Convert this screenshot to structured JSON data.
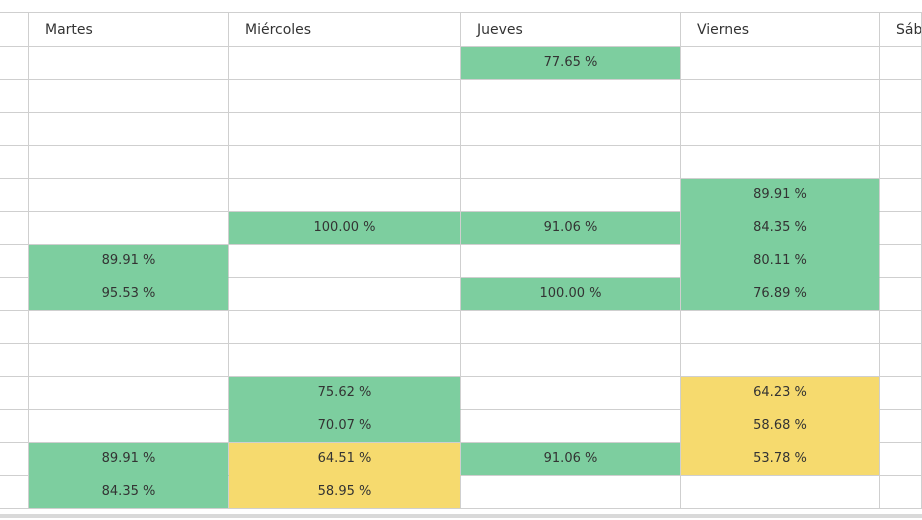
{
  "colors": {
    "green": "#7dce9f",
    "yellow": "#f6da6e",
    "grid": "#cfcfcf"
  },
  "headers": [
    "",
    "Martes",
    "Miércoles",
    "Jueves",
    "Viernes",
    "Sába"
  ],
  "rows": [
    [
      "",
      "",
      "",
      "77.65 %",
      "",
      ""
    ],
    [
      "",
      "",
      "",
      "",
      "",
      ""
    ],
    [
      "",
      "",
      "",
      "",
      "",
      ""
    ],
    [
      "",
      "",
      "",
      "",
      "",
      ""
    ],
    [
      "",
      "",
      "",
      "",
      "89.91 %",
      ""
    ],
    [
      "",
      "",
      "100.00 %",
      "91.06 %",
      "84.35 %",
      ""
    ],
    [
      "",
      "89.91 %",
      "",
      "",
      "80.11 %",
      ""
    ],
    [
      "",
      "95.53 %",
      "",
      "100.00 %",
      "76.89 %",
      ""
    ],
    [
      "",
      "",
      "",
      "",
      "",
      ""
    ],
    [
      "",
      "",
      "",
      "",
      "",
      ""
    ],
    [
      "",
      "",
      "75.62 %",
      "",
      "64.23 %",
      ""
    ],
    [
      "",
      "",
      "70.07 %",
      "",
      "58.68 %",
      ""
    ],
    [
      "",
      "89.91 %",
      "64.51 %",
      "91.06 %",
      "53.78 %",
      ""
    ],
    [
      "",
      "84.35 %",
      "58.95 %",
      "",
      "",
      ""
    ]
  ],
  "fills": [
    [
      "",
      "",
      "",
      "green",
      "",
      ""
    ],
    [
      "",
      "",
      "",
      "",
      "",
      ""
    ],
    [
      "",
      "",
      "",
      "",
      "",
      ""
    ],
    [
      "",
      "",
      "",
      "",
      "",
      ""
    ],
    [
      "",
      "",
      "",
      "",
      "green",
      ""
    ],
    [
      "",
      "",
      "green",
      "green",
      "green",
      ""
    ],
    [
      "",
      "green",
      "",
      "",
      "green",
      ""
    ],
    [
      "",
      "green",
      "",
      "green",
      "green",
      ""
    ],
    [
      "",
      "",
      "",
      "",
      "",
      ""
    ],
    [
      "",
      "",
      "",
      "",
      "",
      ""
    ],
    [
      "",
      "",
      "green",
      "",
      "yellow",
      ""
    ],
    [
      "",
      "",
      "green",
      "",
      "yellow",
      ""
    ],
    [
      "",
      "green",
      "yellow",
      "green",
      "yellow",
      ""
    ],
    [
      "",
      "green",
      "yellow",
      "",
      "",
      ""
    ]
  ]
}
